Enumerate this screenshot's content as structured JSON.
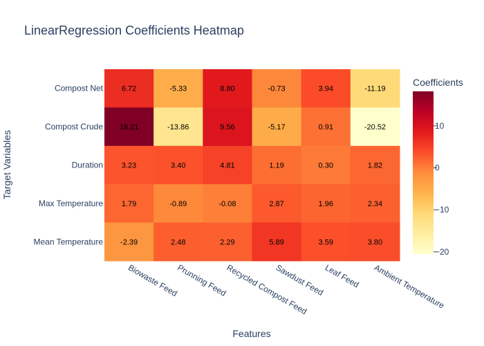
{
  "chart_data": {
    "type": "heatmap",
    "title": "LinearRegression Coefficients Heatmap",
    "xlabel": "Features",
    "ylabel": "Target Variables",
    "x": [
      "Biowaste Feed",
      "Prunning Feed",
      "Recycled Compost Feed",
      "Sawdust Feed",
      "Leaf Feed",
      "Ambient Temperature"
    ],
    "y": [
      "Compost Net",
      "Compost Crude",
      "Duration",
      "Max Temperature",
      "Mean Temperature"
    ],
    "z": [
      [
        6.72,
        -5.33,
        8.8,
        -0.73,
        3.94,
        -11.19
      ],
      [
        18.21,
        -13.86,
        9.56,
        -5.17,
        0.91,
        -20.52
      ],
      [
        3.23,
        3.4,
        4.81,
        1.19,
        0.3,
        1.82
      ],
      [
        1.79,
        -0.89,
        -0.08,
        2.87,
        1.96,
        2.34
      ],
      [
        -2.39,
        2.48,
        2.29,
        5.89,
        3.59,
        3.8
      ]
    ],
    "text": [
      [
        "6.72",
        "-5.33",
        "8.80",
        "-0.73",
        "3.94",
        "-11.19"
      ],
      [
        "18.21",
        "-13.86",
        "9.56",
        "-5.17",
        "0.91",
        "-20.52"
      ],
      [
        "3.23",
        "3.40",
        "4.81",
        "1.19",
        "0.30",
        "1.82"
      ],
      [
        "1.79",
        "-0.89",
        "-0.08",
        "2.87",
        "1.96",
        "2.34"
      ],
      [
        "-2.39",
        "2.48",
        "2.29",
        "5.89",
        "3.59",
        "3.80"
      ]
    ],
    "zrange": [
      -20.52,
      18.21
    ],
    "colorscale": "YlOrRd",
    "colorscale_stops": [
      "#ffffcc",
      "#ffeda0",
      "#fed976",
      "#feb24c",
      "#fd8d3c",
      "#fc4e2a",
      "#e31a1c",
      "#bd0026",
      "#800026"
    ],
    "colorbar": {
      "title": "Coefficients",
      "ticks": [
        -20,
        -10,
        0,
        10
      ],
      "tick_labels": [
        "−20",
        "−10",
        "0",
        "10"
      ]
    },
    "grid": false
  }
}
